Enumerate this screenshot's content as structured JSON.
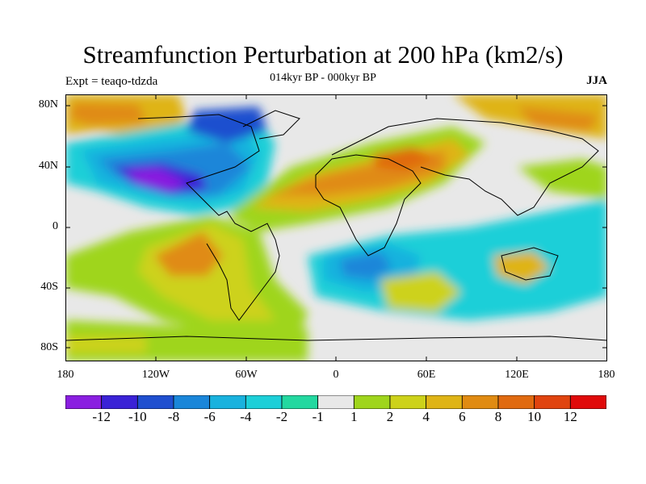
{
  "title": "Streamfunction Perturbation at 200 hPa (km2/s)",
  "subtitle": "014kyr BP - 000kyr BP",
  "experiment": "Expt = teaqo-tdzda",
  "season": "JJA",
  "y_axis_labels": [
    "80N",
    "40N",
    "0",
    "40S",
    "80S"
  ],
  "x_axis_labels": [
    "180",
    "120W",
    "60W",
    "0",
    "60E",
    "120E",
    "180"
  ],
  "colorbar": {
    "labels": [
      "-12",
      "-10",
      "-8",
      "-6",
      "-4",
      "-2",
      "-1",
      "1",
      "2",
      "4",
      "6",
      "8",
      "10",
      "12"
    ],
    "colors": [
      "#8a1ee0",
      "#3a22d6",
      "#1f4fcf",
      "#1a86d9",
      "#19b2de",
      "#1ccfd8",
      "#23d8a0",
      "#e8e8e8",
      "#9fd51c",
      "#cdd21a",
      "#dfb416",
      "#e08b12",
      "#e06a10",
      "#e0440f",
      "#e00a0a"
    ]
  },
  "map": {
    "projection": "cylindrical-equidistant",
    "lon_range": [
      -180,
      180
    ],
    "lat_range": [
      -90,
      90
    ],
    "background": "#e8e8e8"
  }
}
